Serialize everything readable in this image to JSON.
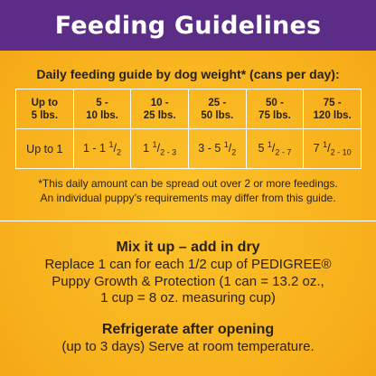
{
  "header": {
    "title": "Feeding Guidelines"
  },
  "guide": {
    "subtitle": "Daily feeding guide by dog weight* (cans per day):",
    "weights": [
      [
        "Up to",
        "5 lbs."
      ],
      [
        "5 -",
        "10 lbs."
      ],
      [
        "10 -",
        "25 lbs."
      ],
      [
        "25 -",
        "50 lbs."
      ],
      [
        "50 -",
        "75 lbs."
      ],
      [
        "75 -",
        "120 lbs."
      ]
    ],
    "cans": [
      [
        "Up to 1",
        "",
        ""
      ],
      [
        "1 - 1 ",
        "1",
        "2"
      ],
      [
        "1 ",
        "1",
        "2 - 3"
      ],
      [
        "3 - 5 ",
        "1",
        "2"
      ],
      [
        "5 ",
        "1",
        "2 - 7"
      ],
      [
        "7 ",
        "1",
        "2 - 10"
      ]
    ],
    "note_line1": "*This daily amount can be spread out over 2 or more feedings.",
    "note_line2": "An individual puppy’s requirements may differ from this guide."
  },
  "mix": {
    "title": "Mix it up – add in dry",
    "line1": "Replace 1 can for each 1/2 cup of PEDIGREE®",
    "line2": "Puppy Growth & Protection (1 can = 13.2 oz.,",
    "line3": "1 cup = 8 oz. measuring cup)"
  },
  "refrigerate": {
    "title": "Refrigerate after opening",
    "line1": "(up to 3 days) Serve at room temperature."
  }
}
